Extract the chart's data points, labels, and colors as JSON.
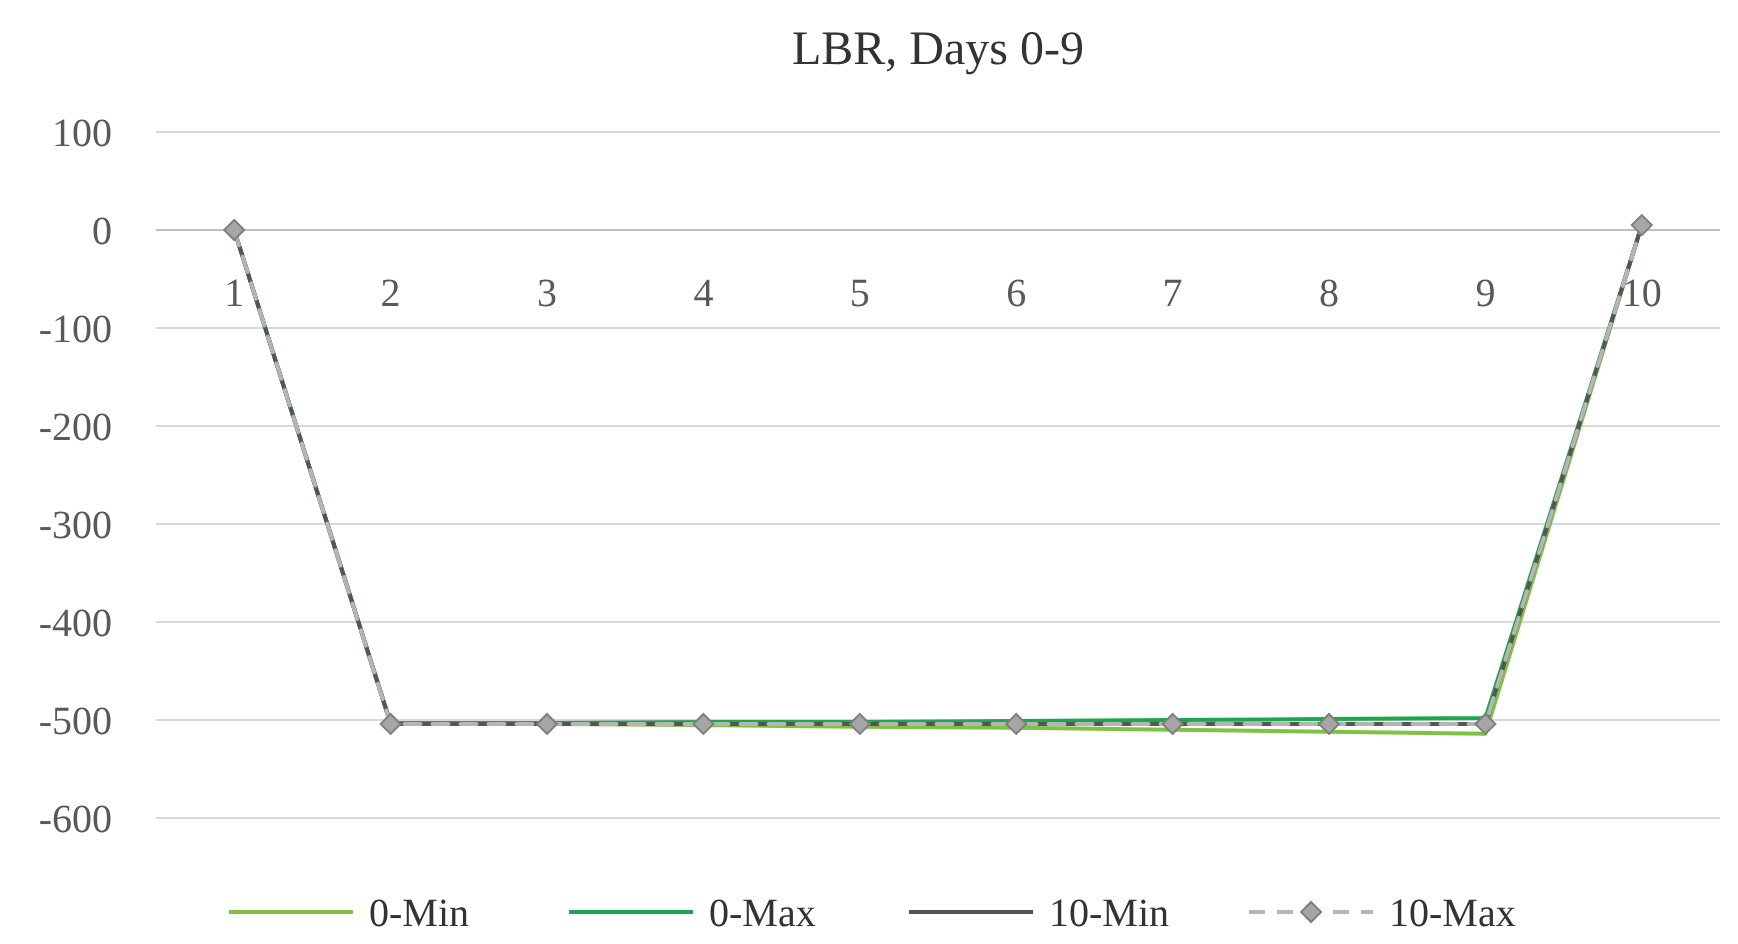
{
  "chart_data": {
    "type": "line",
    "title": "LBR, Days 0-9",
    "categories": [
      "1",
      "2",
      "3",
      "4",
      "5",
      "6",
      "7",
      "8",
      "9",
      "10"
    ],
    "series": [
      {
        "name": "0-Min",
        "color": "#7dc242",
        "values": [
          0,
          -504,
          -504,
          -505,
          -507,
          -508,
          -510,
          -512,
          -514,
          5
        ],
        "marker": "none",
        "line_style": "solid"
      },
      {
        "name": "0-Max",
        "color": "#1aa84a",
        "values": [
          0,
          -503,
          -503,
          -502,
          -502,
          -501,
          -500,
          -499,
          -498,
          5
        ],
        "marker": "none",
        "line_style": "solid"
      },
      {
        "name": "10-Min",
        "color": "#555555",
        "values": [
          0,
          -504,
          -504,
          -504,
          -504,
          -504,
          -504,
          -504,
          -504,
          5
        ],
        "marker": "none",
        "line_style": "solid"
      },
      {
        "name": "10-Max",
        "color": "#b5b5b5",
        "values": [
          0,
          -504,
          -504,
          -504,
          -504,
          -504,
          -504,
          -504,
          -504,
          5
        ],
        "marker": "diamond",
        "line_style": "dashed"
      }
    ],
    "ylim": [
      -600,
      100
    ],
    "yticks": [
      -600,
      -500,
      -400,
      -300,
      -200,
      -100,
      0,
      100
    ],
    "grid": "y",
    "legend": "bottom"
  }
}
